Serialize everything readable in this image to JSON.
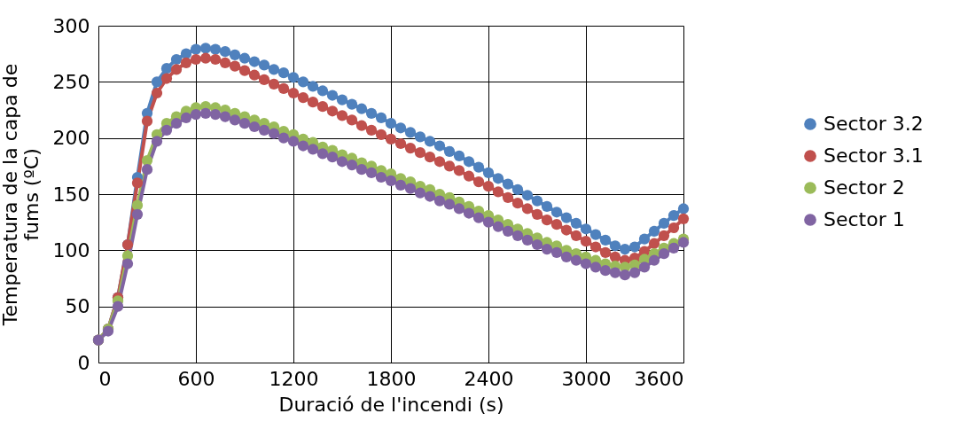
{
  "chart_data": {
    "type": "line",
    "xlabel": "Duració de l'incendi (s)",
    "ylabel": "Temperatura de la capa de fums (ºC)",
    "x": [
      0,
      60,
      120,
      180,
      240,
      300,
      360,
      420,
      480,
      540,
      600,
      660,
      720,
      780,
      840,
      900,
      960,
      1020,
      1080,
      1140,
      1200,
      1260,
      1320,
      1380,
      1440,
      1500,
      1560,
      1620,
      1680,
      1740,
      1800,
      1860,
      1920,
      1980,
      2040,
      2100,
      2160,
      2220,
      2280,
      2340,
      2400,
      2460,
      2520,
      2580,
      2640,
      2700,
      2760,
      2820,
      2880,
      2940,
      3000,
      3060,
      3120,
      3180,
      3240,
      3300,
      3360,
      3420,
      3480,
      3540,
      3600
    ],
    "xlim": [
      0,
      3600
    ],
    "xticks": [
      0,
      600,
      1200,
      1800,
      2400,
      3000,
      3600
    ],
    "ylim": [
      0,
      300
    ],
    "yticks": [
      0,
      50,
      100,
      150,
      200,
      250,
      300
    ],
    "grid": true,
    "legend": "right",
    "marker": "circle",
    "line_style": "solid",
    "series": [
      {
        "name": "Sector 3.2",
        "color": "#4f81bd",
        "values": [
          20,
          30,
          58,
          105,
          165,
          222,
          250,
          262,
          270,
          275,
          279,
          280,
          279,
          277,
          274,
          271,
          268,
          265,
          261,
          258,
          254,
          250,
          246,
          242,
          238,
          234,
          230,
          226,
          222,
          218,
          213,
          209,
          205,
          201,
          197,
          193,
          188,
          184,
          179,
          174,
          169,
          164,
          159,
          154,
          149,
          144,
          139,
          134,
          129,
          124,
          119,
          114,
          109,
          104,
          101,
          103,
          110,
          117,
          124,
          131,
          137
        ]
      },
      {
        "name": "Sector 3.1",
        "color": "#c0504d",
        "values": [
          20,
          30,
          58,
          105,
          160,
          215,
          240,
          253,
          261,
          267,
          270,
          271,
          270,
          267,
          264,
          260,
          256,
          252,
          248,
          244,
          240,
          236,
          232,
          228,
          224,
          220,
          216,
          211,
          207,
          203,
          199,
          195,
          191,
          187,
          183,
          179,
          175,
          171,
          166,
          161,
          157,
          152,
          147,
          142,
          137,
          132,
          127,
          123,
          118,
          113,
          108,
          103,
          98,
          94,
          91,
          93,
          99,
          106,
          113,
          120,
          128
        ]
      },
      {
        "name": "Sector 2",
        "color": "#9bbb59",
        "values": [
          20,
          30,
          55,
          95,
          140,
          180,
          203,
          213,
          219,
          224,
          227,
          228,
          227,
          225,
          222,
          219,
          216,
          213,
          210,
          206,
          203,
          199,
          196,
          192,
          189,
          185,
          182,
          178,
          175,
          171,
          168,
          164,
          161,
          157,
          154,
          150,
          147,
          143,
          139,
          135,
          131,
          127,
          123,
          119,
          115,
          111,
          107,
          104,
          100,
          97,
          94,
          91,
          88,
          86,
          85,
          87,
          92,
          97,
          102,
          106,
          110
        ]
      },
      {
        "name": "Sector 1",
        "color": "#8064a2",
        "values": [
          20,
          28,
          50,
          88,
          132,
          172,
          197,
          207,
          213,
          218,
          221,
          222,
          221,
          219,
          216,
          213,
          210,
          207,
          204,
          200,
          197,
          193,
          190,
          186,
          183,
          179,
          176,
          172,
          169,
          165,
          162,
          158,
          155,
          151,
          148,
          144,
          141,
          137,
          133,
          129,
          125,
          121,
          117,
          113,
          109,
          105,
          101,
          98,
          94,
          91,
          88,
          85,
          82,
          80,
          78,
          80,
          85,
          91,
          97,
          102,
          107
        ]
      }
    ]
  }
}
